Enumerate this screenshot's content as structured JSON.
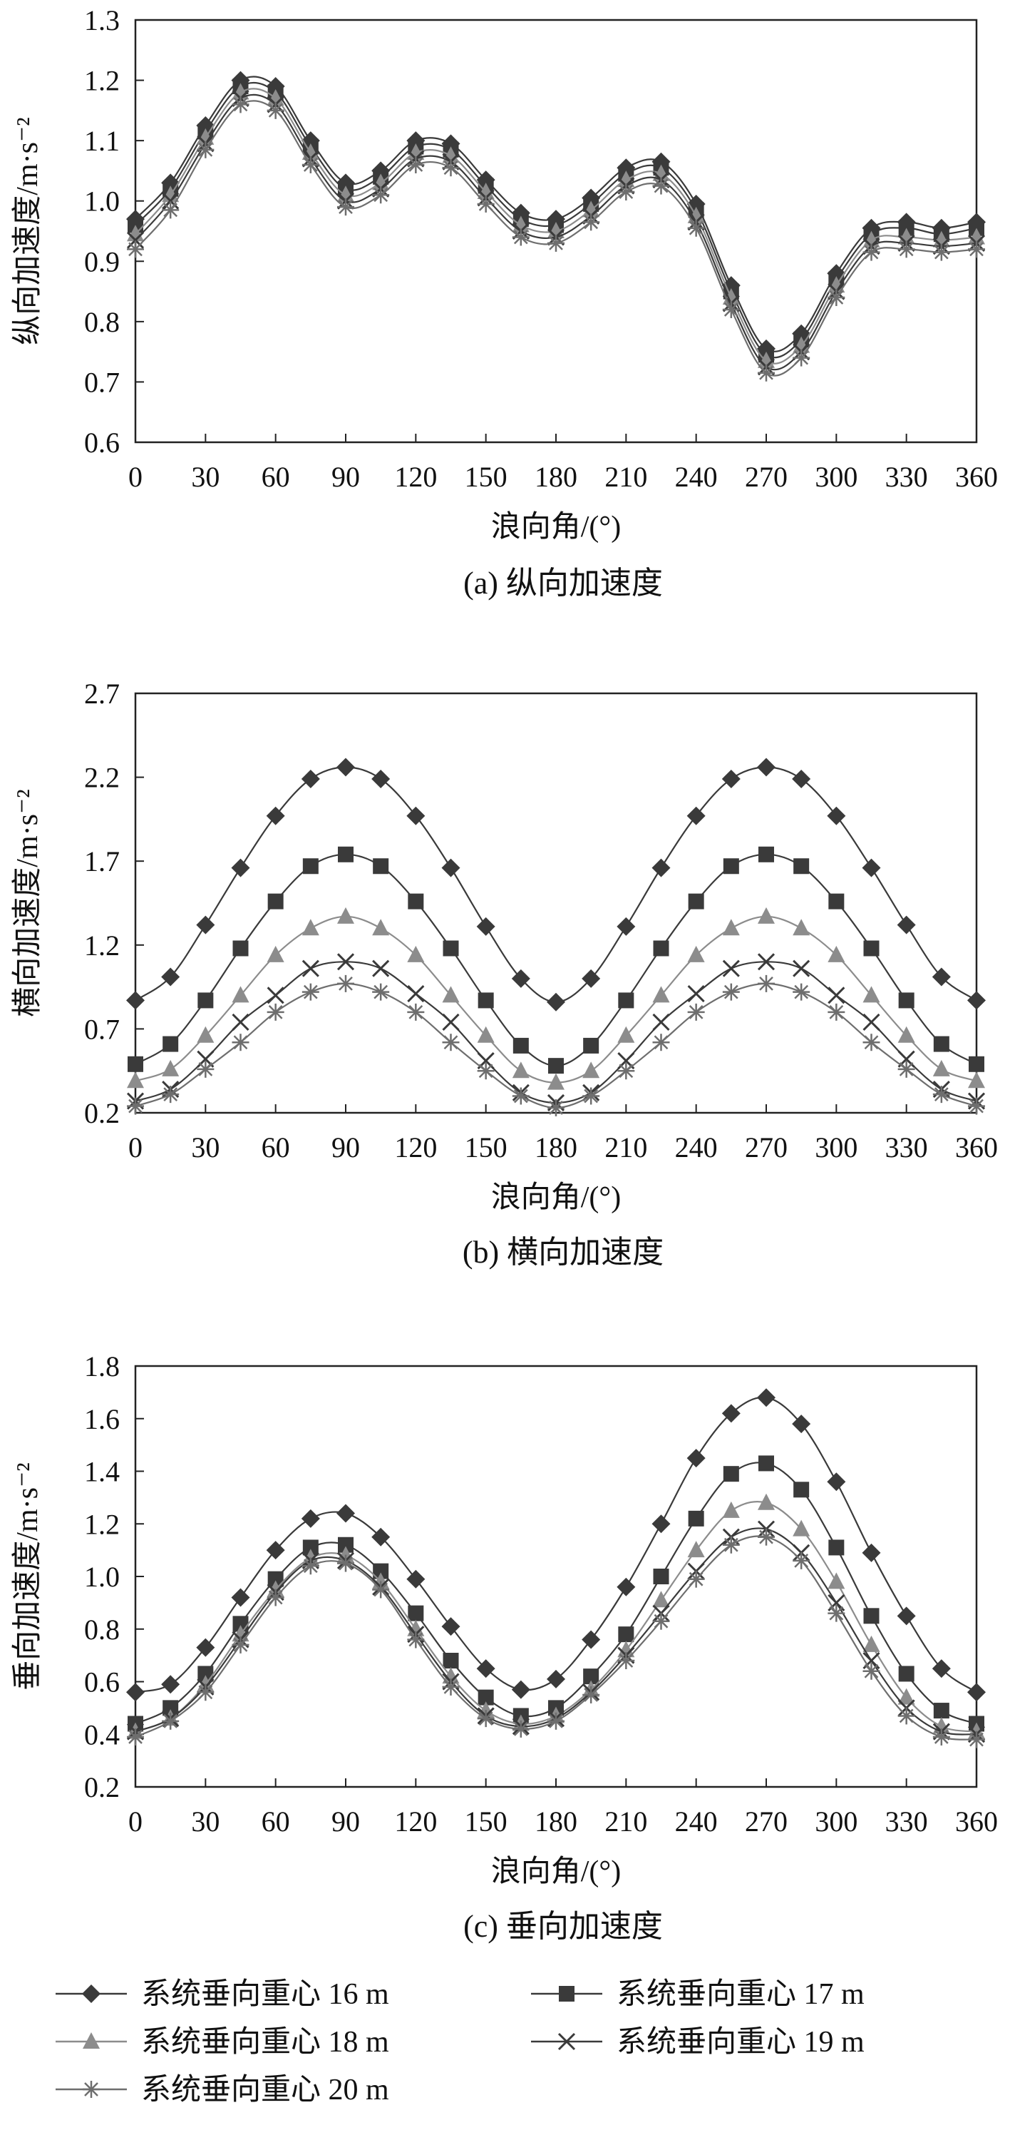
{
  "chart_data": [
    {
      "type": "line",
      "caption": "(a) 纵向加速度",
      "xlabel": "浪向角/(°)",
      "ylabel": "纵向加速度/m·s⁻²",
      "xlim": [
        0,
        360
      ],
      "ylim": [
        0.6,
        1.3
      ],
      "x_ticks": [
        "0",
        "30",
        "60",
        "90",
        "120",
        "150",
        "180",
        "210",
        "240",
        "270",
        "300",
        "330",
        "360"
      ],
      "y_ticks": [
        "0.6",
        "0.7",
        "0.8",
        "0.9",
        "1.0",
        "1.1",
        "1.2",
        "1.3"
      ],
      "x": [
        0,
        15,
        30,
        45,
        60,
        75,
        90,
        105,
        120,
        135,
        150,
        165,
        180,
        195,
        210,
        225,
        240,
        255,
        270,
        285,
        300,
        315,
        330,
        345,
        360
      ],
      "series": [
        {
          "name": "系统垂向重心 16 m",
          "values": [
            0.97,
            1.03,
            1.125,
            1.2,
            1.19,
            1.1,
            1.03,
            1.05,
            1.1,
            1.095,
            1.035,
            0.98,
            0.97,
            1.005,
            1.055,
            1.065,
            0.995,
            0.86,
            0.755,
            0.78,
            0.88,
            0.955,
            0.965,
            0.955,
            0.965
          ]
        },
        {
          "name": "系统垂向重心 17 m",
          "values": [
            0.96,
            1.02,
            1.115,
            1.19,
            1.18,
            1.09,
            1.02,
            1.04,
            1.09,
            1.085,
            1.025,
            0.97,
            0.96,
            0.995,
            1.045,
            1.055,
            0.985,
            0.85,
            0.745,
            0.77,
            0.87,
            0.945,
            0.955,
            0.945,
            0.955
          ]
        },
        {
          "name": "系统垂向重心 18 m",
          "values": [
            0.945,
            1.01,
            1.105,
            1.18,
            1.17,
            1.08,
            1.01,
            1.03,
            1.08,
            1.075,
            1.015,
            0.96,
            0.95,
            0.985,
            1.035,
            1.045,
            0.975,
            0.84,
            0.735,
            0.76,
            0.86,
            0.935,
            0.94,
            0.935,
            0.94
          ]
        },
        {
          "name": "系统垂向重心 19 m",
          "values": [
            0.935,
            1.0,
            1.095,
            1.17,
            1.16,
            1.07,
            1.0,
            1.02,
            1.07,
            1.065,
            1.005,
            0.95,
            0.94,
            0.975,
            1.025,
            1.035,
            0.965,
            0.83,
            0.725,
            0.75,
            0.85,
            0.925,
            0.93,
            0.925,
            0.93
          ]
        },
        {
          "name": "系统垂向重心 20 m",
          "values": [
            0.92,
            0.985,
            1.085,
            1.16,
            1.15,
            1.06,
            0.99,
            1.01,
            1.06,
            1.055,
            0.995,
            0.94,
            0.93,
            0.965,
            1.015,
            1.025,
            0.955,
            0.82,
            0.715,
            0.74,
            0.84,
            0.915,
            0.92,
            0.915,
            0.92
          ]
        }
      ]
    },
    {
      "type": "line",
      "caption": "(b) 横向加速度",
      "xlabel": "浪向角/(°)",
      "ylabel": "横向加速度/m·s⁻²",
      "xlim": [
        0,
        360
      ],
      "ylim": [
        0.2,
        2.7
      ],
      "x_ticks": [
        "0",
        "30",
        "60",
        "90",
        "120",
        "150",
        "180",
        "210",
        "240",
        "270",
        "300",
        "330",
        "360"
      ],
      "y_ticks": [
        "0.2",
        "0.7",
        "1.2",
        "1.7",
        "2.2",
        "2.7"
      ],
      "x": [
        0,
        15,
        30,
        45,
        60,
        75,
        90,
        105,
        120,
        135,
        150,
        165,
        180,
        195,
        210,
        225,
        240,
        255,
        270,
        285,
        300,
        315,
        330,
        345,
        360
      ],
      "series": [
        {
          "name": "系统垂向重心 16 m",
          "values": [
            0.87,
            1.01,
            1.32,
            1.66,
            1.97,
            2.19,
            2.26,
            2.19,
            1.97,
            1.66,
            1.31,
            1.0,
            0.86,
            1.0,
            1.31,
            1.66,
            1.97,
            2.19,
            2.26,
            2.19,
            1.97,
            1.66,
            1.32,
            1.01,
            0.87
          ]
        },
        {
          "name": "系统垂向重心 17 m",
          "values": [
            0.49,
            0.61,
            0.87,
            1.18,
            1.46,
            1.67,
            1.74,
            1.67,
            1.46,
            1.18,
            0.87,
            0.6,
            0.48,
            0.6,
            0.87,
            1.18,
            1.46,
            1.67,
            1.74,
            1.67,
            1.46,
            1.18,
            0.87,
            0.61,
            0.49
          ]
        },
        {
          "name": "系统垂向重心 18 m",
          "values": [
            0.39,
            0.46,
            0.66,
            0.9,
            1.14,
            1.3,
            1.37,
            1.3,
            1.14,
            0.9,
            0.66,
            0.45,
            0.38,
            0.45,
            0.66,
            0.9,
            1.14,
            1.3,
            1.37,
            1.3,
            1.14,
            0.9,
            0.66,
            0.46,
            0.39
          ]
        },
        {
          "name": "系统垂向重心 19 m",
          "values": [
            0.27,
            0.34,
            0.52,
            0.74,
            0.9,
            1.06,
            1.1,
            1.06,
            0.91,
            0.74,
            0.51,
            0.32,
            0.26,
            0.32,
            0.51,
            0.74,
            0.91,
            1.06,
            1.1,
            1.06,
            0.9,
            0.74,
            0.52,
            0.34,
            0.27
          ]
        },
        {
          "name": "系统垂向重心 20 m",
          "values": [
            0.24,
            0.31,
            0.46,
            0.62,
            0.8,
            0.92,
            0.97,
            0.92,
            0.8,
            0.62,
            0.45,
            0.3,
            0.23,
            0.3,
            0.45,
            0.62,
            0.8,
            0.92,
            0.97,
            0.92,
            0.8,
            0.62,
            0.46,
            0.31,
            0.24
          ]
        }
      ]
    },
    {
      "type": "line",
      "caption": "(c) 垂向加速度",
      "xlabel": "浪向角/(°)",
      "ylabel": "垂向加速度/m·s⁻²",
      "xlim": [
        0,
        360
      ],
      "ylim": [
        0.2,
        1.8
      ],
      "x_ticks": [
        "0",
        "30",
        "60",
        "90",
        "120",
        "150",
        "180",
        "210",
        "240",
        "270",
        "300",
        "330",
        "360"
      ],
      "y_ticks": [
        "0.2",
        "0.4",
        "0.6",
        "0.8",
        "1.0",
        "1.2",
        "1.4",
        "1.6",
        "1.8"
      ],
      "x": [
        0,
        15,
        30,
        45,
        60,
        75,
        90,
        105,
        120,
        135,
        150,
        165,
        180,
        195,
        210,
        225,
        240,
        255,
        270,
        285,
        300,
        315,
        330,
        345,
        360
      ],
      "series": [
        {
          "name": "系统垂向重心 16 m",
          "values": [
            0.56,
            0.59,
            0.73,
            0.92,
            1.1,
            1.22,
            1.24,
            1.15,
            0.99,
            0.81,
            0.65,
            0.57,
            0.61,
            0.76,
            0.96,
            1.2,
            1.45,
            1.62,
            1.68,
            1.58,
            1.36,
            1.09,
            0.85,
            0.65,
            0.56
          ]
        },
        {
          "name": "系统垂向重心 17 m",
          "values": [
            0.44,
            0.5,
            0.63,
            0.82,
            0.99,
            1.11,
            1.12,
            1.02,
            0.86,
            0.68,
            0.54,
            0.47,
            0.5,
            0.62,
            0.78,
            1.0,
            1.22,
            1.39,
            1.43,
            1.33,
            1.11,
            0.85,
            0.63,
            0.49,
            0.44
          ]
        },
        {
          "name": "系统垂向重心 18 m",
          "values": [
            0.41,
            0.46,
            0.59,
            0.78,
            0.95,
            1.07,
            1.08,
            0.98,
            0.8,
            0.62,
            0.49,
            0.44,
            0.47,
            0.57,
            0.72,
            0.91,
            1.1,
            1.25,
            1.28,
            1.18,
            0.98,
            0.74,
            0.54,
            0.43,
            0.41
          ]
        },
        {
          "name": "系统垂向重心 19 m",
          "values": [
            0.41,
            0.46,
            0.58,
            0.76,
            0.94,
            1.06,
            1.06,
            0.96,
            0.78,
            0.6,
            0.47,
            0.43,
            0.46,
            0.56,
            0.7,
            0.86,
            1.02,
            1.15,
            1.18,
            1.09,
            0.9,
            0.68,
            0.5,
            0.41,
            0.4
          ]
        },
        {
          "name": "系统垂向重心 20 m",
          "values": [
            0.39,
            0.45,
            0.56,
            0.74,
            0.92,
            1.04,
            1.05,
            0.95,
            0.76,
            0.58,
            0.46,
            0.42,
            0.45,
            0.55,
            0.68,
            0.83,
            0.99,
            1.12,
            1.15,
            1.06,
            0.86,
            0.64,
            0.47,
            0.39,
            0.38
          ]
        }
      ]
    }
  ],
  "legend": [
    {
      "label": "系统垂向重心 16 m",
      "marker": "diamond",
      "color": "#3a3a3a"
    },
    {
      "label": "系统垂向重心 17 m",
      "marker": "square",
      "color": "#3a3a3a"
    },
    {
      "label": "系统垂向重心 18 m",
      "marker": "triangle",
      "color": "#8c8c8c"
    },
    {
      "label": "系统垂向重心 19 m",
      "marker": "x",
      "color": "#3a3a3a"
    },
    {
      "label": "系统垂向重心 20 m",
      "marker": "star",
      "color": "#6e6e6e"
    }
  ]
}
